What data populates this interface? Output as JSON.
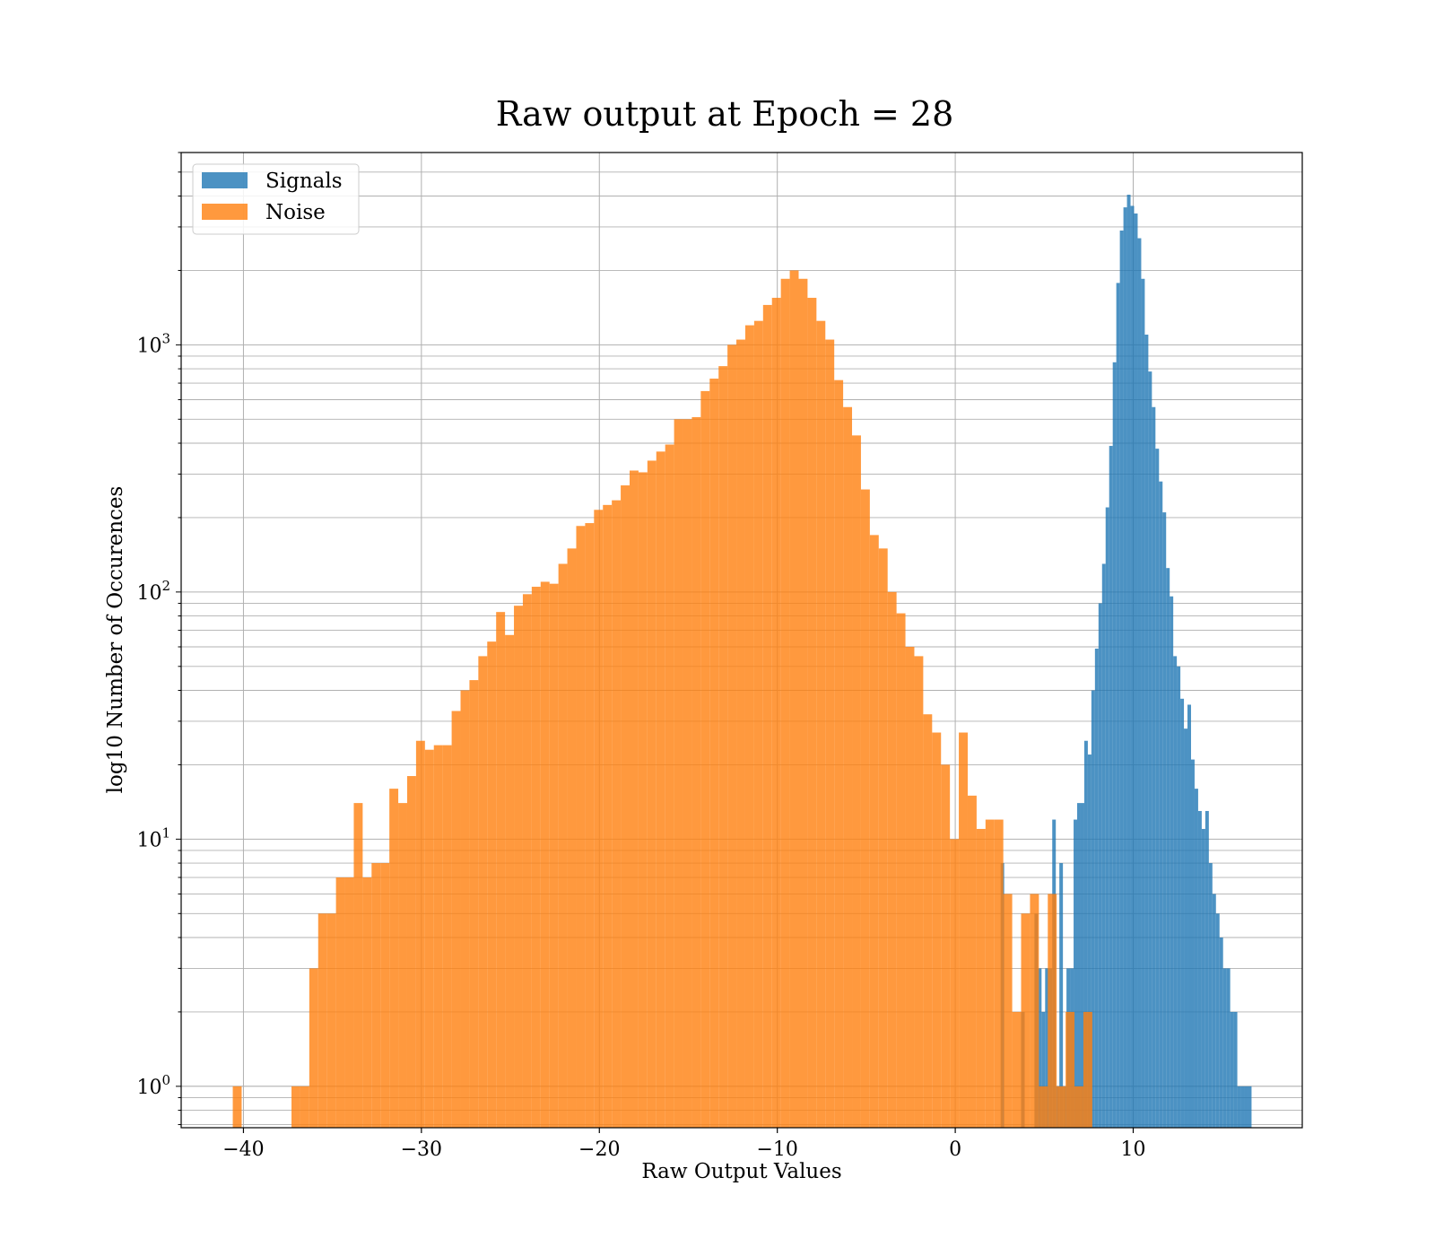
{
  "chart_data": {
    "type": "bar",
    "title": "Raw output at Epoch = 28",
    "xlabel": "Raw Output Values",
    "ylabel": "log10 Number of Occurences",
    "xlim": [
      -43.5,
      19.5
    ],
    "ylim": [
      0.68,
      6000
    ],
    "yscale": "log",
    "grid": true,
    "legend_position": "top-left",
    "x_ticks": [
      {
        "value": -40,
        "label": "−40"
      },
      {
        "value": -30,
        "label": "−30"
      },
      {
        "value": -20,
        "label": "−20"
      },
      {
        "value": -10,
        "label": "−10"
      },
      {
        "value": 0,
        "label": "0"
      },
      {
        "value": 10,
        "label": "10"
      }
    ],
    "y_ticks": [
      {
        "value": 1,
        "base": "10",
        "exp": "0"
      },
      {
        "value": 10,
        "base": "10",
        "exp": "1"
      },
      {
        "value": 100,
        "base": "10",
        "exp": "2"
      },
      {
        "value": 1000,
        "base": "10",
        "exp": "3"
      }
    ],
    "series": [
      {
        "name": "Signals",
        "color": "#1f77b4",
        "opacity": 0.8,
        "bins": [
          [
            2.55,
            2.75,
            8
          ],
          [
            3.7,
            3.9,
            2
          ],
          [
            4.45,
            4.65,
            5
          ],
          [
            4.65,
            4.85,
            3
          ],
          [
            4.85,
            5.05,
            2
          ],
          [
            5.05,
            5.25,
            3
          ],
          [
            5.25,
            5.45,
            3
          ],
          [
            5.45,
            5.65,
            12
          ],
          [
            5.65,
            5.85,
            1
          ],
          [
            5.85,
            6.05,
            8
          ],
          [
            6.05,
            6.25,
            1
          ],
          [
            6.25,
            6.45,
            3
          ],
          [
            6.45,
            6.65,
            3
          ],
          [
            6.65,
            6.85,
            12
          ],
          [
            6.85,
            7.05,
            14
          ],
          [
            7.05,
            7.25,
            14
          ],
          [
            7.25,
            7.45,
            25
          ],
          [
            7.45,
            7.65,
            22
          ],
          [
            7.65,
            7.85,
            40
          ],
          [
            7.85,
            8.05,
            59
          ],
          [
            8.05,
            8.25,
            90
          ],
          [
            8.25,
            8.45,
            130
          ],
          [
            8.45,
            8.65,
            220
          ],
          [
            8.65,
            8.85,
            390
          ],
          [
            8.85,
            9.05,
            850
          ],
          [
            9.05,
            9.25,
            1780
          ],
          [
            9.25,
            9.45,
            2900
          ],
          [
            9.45,
            9.65,
            3600
          ],
          [
            9.65,
            9.85,
            4050
          ],
          [
            9.85,
            10.05,
            3650
          ],
          [
            10.05,
            10.25,
            3400
          ],
          [
            10.25,
            10.45,
            2700
          ],
          [
            10.45,
            10.65,
            1850
          ],
          [
            10.65,
            10.85,
            1100
          ],
          [
            10.85,
            11.05,
            780
          ],
          [
            11.05,
            11.25,
            560
          ],
          [
            11.25,
            11.45,
            380
          ],
          [
            11.45,
            11.65,
            280
          ],
          [
            11.65,
            11.85,
            210
          ],
          [
            11.85,
            12.05,
            125
          ],
          [
            12.05,
            12.25,
            96
          ],
          [
            12.25,
            12.45,
            55
          ],
          [
            12.45,
            12.65,
            50
          ],
          [
            12.65,
            12.85,
            37
          ],
          [
            12.85,
            13.05,
            28
          ],
          [
            13.05,
            13.25,
            35
          ],
          [
            13.25,
            13.45,
            21
          ],
          [
            13.45,
            13.65,
            16
          ],
          [
            13.65,
            13.85,
            13
          ],
          [
            13.85,
            14.05,
            11
          ],
          [
            14.05,
            14.25,
            13
          ],
          [
            14.25,
            14.45,
            8
          ],
          [
            14.45,
            14.65,
            6
          ],
          [
            14.65,
            14.85,
            5
          ],
          [
            14.85,
            15.05,
            4
          ],
          [
            15.05,
            15.25,
            3
          ],
          [
            15.25,
            15.45,
            3
          ],
          [
            15.45,
            15.65,
            2
          ],
          [
            15.65,
            15.85,
            2
          ],
          [
            15.85,
            16.05,
            1
          ],
          [
            16.05,
            16.25,
            1
          ],
          [
            16.25,
            16.45,
            1
          ],
          [
            16.45,
            16.65,
            1
          ]
        ]
      },
      {
        "name": "Noise",
        "color": "#ff7f0e",
        "opacity": 0.8,
        "bins": [
          [
            -40.6,
            -40.1,
            1
          ],
          [
            -37.3,
            -36.8,
            1
          ],
          [
            -36.8,
            -36.3,
            1
          ],
          [
            -36.3,
            -35.8,
            3
          ],
          [
            -35.8,
            -35.3,
            5
          ],
          [
            -35.3,
            -34.8,
            5
          ],
          [
            -34.8,
            -34.3,
            7
          ],
          [
            -34.3,
            -33.8,
            7
          ],
          [
            -33.8,
            -33.3,
            14
          ],
          [
            -33.3,
            -32.8,
            7
          ],
          [
            -32.8,
            -32.3,
            8
          ],
          [
            -32.3,
            -31.8,
            8
          ],
          [
            -31.8,
            -31.3,
            16
          ],
          [
            -31.3,
            -30.8,
            14
          ],
          [
            -30.8,
            -30.3,
            18
          ],
          [
            -30.3,
            -29.8,
            25
          ],
          [
            -29.8,
            -29.3,
            23
          ],
          [
            -29.3,
            -28.8,
            24
          ],
          [
            -28.8,
            -28.3,
            24
          ],
          [
            -28.3,
            -27.8,
            33
          ],
          [
            -27.8,
            -27.3,
            40
          ],
          [
            -27.3,
            -26.8,
            44
          ],
          [
            -26.8,
            -26.3,
            55
          ],
          [
            -26.3,
            -25.8,
            63
          ],
          [
            -25.8,
            -25.3,
            83
          ],
          [
            -25.3,
            -24.8,
            67
          ],
          [
            -24.8,
            -24.3,
            88
          ],
          [
            -24.3,
            -23.8,
            98
          ],
          [
            -23.8,
            -23.3,
            105
          ],
          [
            -23.3,
            -22.8,
            110
          ],
          [
            -22.8,
            -22.3,
            108
          ],
          [
            -22.3,
            -21.8,
            130
          ],
          [
            -21.8,
            -21.3,
            150
          ],
          [
            -21.3,
            -20.8,
            185
          ],
          [
            -20.8,
            -20.3,
            190
          ],
          [
            -20.3,
            -19.8,
            215
          ],
          [
            -19.8,
            -19.3,
            225
          ],
          [
            -19.3,
            -18.8,
            235
          ],
          [
            -18.8,
            -18.3,
            270
          ],
          [
            -18.3,
            -17.8,
            310
          ],
          [
            -17.8,
            -17.3,
            305
          ],
          [
            -17.3,
            -16.8,
            340
          ],
          [
            -16.8,
            -16.3,
            370
          ],
          [
            -16.3,
            -15.8,
            395
          ],
          [
            -15.8,
            -15.3,
            500
          ],
          [
            -15.3,
            -14.8,
            500
          ],
          [
            -14.8,
            -14.3,
            510
          ],
          [
            -14.3,
            -13.8,
            650
          ],
          [
            -13.8,
            -13.3,
            730
          ],
          [
            -13.3,
            -12.8,
            820
          ],
          [
            -12.8,
            -12.3,
            1000
          ],
          [
            -12.3,
            -11.8,
            1050
          ],
          [
            -11.8,
            -11.3,
            1200
          ],
          [
            -11.3,
            -10.8,
            1250
          ],
          [
            -10.8,
            -10.3,
            1450
          ],
          [
            -10.3,
            -9.8,
            1550
          ],
          [
            -9.8,
            -9.3,
            1850
          ],
          [
            -9.3,
            -8.8,
            2000
          ],
          [
            -8.8,
            -8.3,
            1850
          ],
          [
            -8.3,
            -7.8,
            1550
          ],
          [
            -7.8,
            -7.3,
            1250
          ],
          [
            -7.3,
            -6.8,
            1050
          ],
          [
            -6.8,
            -6.3,
            720
          ],
          [
            -6.3,
            -5.8,
            560
          ],
          [
            -5.8,
            -5.3,
            430
          ],
          [
            -5.3,
            -4.8,
            260
          ],
          [
            -4.8,
            -4.3,
            170
          ],
          [
            -4.3,
            -3.8,
            150
          ],
          [
            -3.8,
            -3.3,
            100
          ],
          [
            -3.3,
            -2.8,
            82
          ],
          [
            -2.8,
            -2.3,
            60
          ],
          [
            -2.3,
            -1.8,
            55
          ],
          [
            -1.8,
            -1.3,
            32
          ],
          [
            -1.3,
            -0.8,
            27
          ],
          [
            -0.8,
            -0.3,
            20
          ],
          [
            -0.3,
            0.2,
            10
          ],
          [
            0.2,
            0.7,
            27
          ],
          [
            0.7,
            1.2,
            15
          ],
          [
            1.2,
            1.7,
            11
          ],
          [
            1.7,
            2.2,
            12
          ],
          [
            2.2,
            2.7,
            12
          ],
          [
            2.7,
            3.2,
            6
          ],
          [
            3.2,
            3.7,
            2
          ],
          [
            3.7,
            4.2,
            5
          ],
          [
            4.2,
            4.7,
            6
          ],
          [
            4.7,
            5.2,
            1
          ],
          [
            5.2,
            5.7,
            6
          ],
          [
            5.7,
            6.2,
            1
          ],
          [
            6.2,
            6.7,
            2
          ],
          [
            6.7,
            7.2,
            1
          ],
          [
            7.2,
            7.7,
            2
          ]
        ]
      }
    ]
  }
}
